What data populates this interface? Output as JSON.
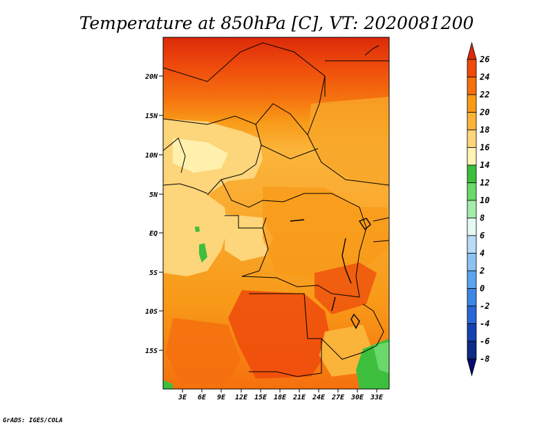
{
  "title": "Temperature at 850hPa [C], VT: 2020081200",
  "credit": "GrADS: IGES/COLA",
  "lat_labels": [
    "20N",
    "15N",
    "10N",
    "5N",
    "EQ",
    "5S",
    "10S",
    "15S"
  ],
  "lon_labels": [
    "3E",
    "6E",
    "9E",
    "12E",
    "15E",
    "18E",
    "21E",
    "24E",
    "27E",
    "30E",
    "33E"
  ],
  "colorbar": {
    "labels": [
      "26",
      "24",
      "22",
      "20",
      "18",
      "16",
      "14",
      "12",
      "10",
      "8",
      "6",
      "4",
      "2",
      "0",
      "-2",
      "-4",
      "-6",
      "-8"
    ],
    "colors_top_to_bottom": [
      "#dc2a0a",
      "#ee4a0c",
      "#f5700f",
      "#f89a18",
      "#fbb43a",
      "#fdd57a",
      "#fff4b5",
      "#3dbf3d",
      "#6bd86b",
      "#a4ecaa",
      "#e4faf4",
      "#b8dcf6",
      "#8cc2f2",
      "#5ca4ee",
      "#3d86e6",
      "#2a66d6",
      "#1443b0",
      "#0c2a86",
      "#070a6e"
    ]
  }
}
